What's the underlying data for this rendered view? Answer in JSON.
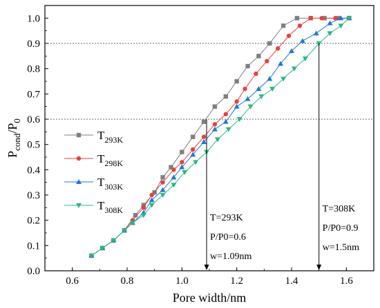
{
  "chart_data": {
    "type": "line",
    "xlabel": "Pore width/nm",
    "ylabel": {
      "main": "P",
      "sub": "cond",
      "rest": "/P",
      "sub2": "0"
    },
    "xlim": [
      0.5,
      1.7
    ],
    "ylim": [
      0.0,
      1.05
    ],
    "xticks": [
      "0.6",
      "0.8",
      "1.0",
      "1.2",
      "1.4",
      "1.6"
    ],
    "yticks": [
      "0.0",
      "0.1",
      "0.2",
      "0.3",
      "0.4",
      "0.5",
      "0.6",
      "0.7",
      "0.8",
      "0.9",
      "1.0"
    ],
    "hlines": [
      0.6,
      0.9
    ],
    "legend_position": "middle-left",
    "series": [
      {
        "name": "T",
        "name_sub": "293K",
        "color": "#7f7f7f",
        "marker": "square",
        "x": [
          0.67,
          0.71,
          0.75,
          0.79,
          0.83,
          0.86,
          0.9,
          0.93,
          0.96,
          1.0,
          1.04,
          1.08,
          1.12,
          1.16,
          1.2,
          1.24,
          1.28,
          1.32,
          1.37,
          1.42,
          1.47,
          1.52,
          1.57,
          1.61
        ],
        "y": [
          0.06,
          0.09,
          0.12,
          0.16,
          0.22,
          0.26,
          0.31,
          0.37,
          0.41,
          0.47,
          0.53,
          0.59,
          0.65,
          0.69,
          0.75,
          0.81,
          0.85,
          0.9,
          0.97,
          1.0,
          1.0,
          1.0,
          1.0,
          1.0
        ]
      },
      {
        "name": "T",
        "name_sub": "298K",
        "color": "#e8403b",
        "marker": "circle",
        "x": [
          0.67,
          0.71,
          0.75,
          0.79,
          0.82,
          0.86,
          0.89,
          0.93,
          0.97,
          1.0,
          1.04,
          1.08,
          1.12,
          1.16,
          1.2,
          1.23,
          1.27,
          1.31,
          1.35,
          1.39,
          1.43,
          1.47,
          1.51,
          1.56,
          1.61
        ],
        "y": [
          0.06,
          0.09,
          0.12,
          0.16,
          0.2,
          0.25,
          0.3,
          0.35,
          0.4,
          0.43,
          0.48,
          0.53,
          0.58,
          0.62,
          0.67,
          0.72,
          0.78,
          0.83,
          0.88,
          0.93,
          0.97,
          1.0,
          1.0,
          1.0,
          1.0
        ]
      },
      {
        "name": "T",
        "name_sub": "303K",
        "color": "#1f77d4",
        "marker": "triangle-up",
        "x": [
          0.67,
          0.71,
          0.75,
          0.79,
          0.82,
          0.86,
          0.89,
          0.93,
          0.97,
          1.0,
          1.04,
          1.08,
          1.12,
          1.16,
          1.2,
          1.24,
          1.28,
          1.32,
          1.36,
          1.4,
          1.44,
          1.49,
          1.54,
          1.58,
          1.61
        ],
        "y": [
          0.06,
          0.09,
          0.12,
          0.16,
          0.19,
          0.23,
          0.28,
          0.32,
          0.37,
          0.41,
          0.46,
          0.51,
          0.56,
          0.59,
          0.65,
          0.68,
          0.72,
          0.76,
          0.82,
          0.87,
          0.91,
          0.94,
          0.98,
          1.0,
          1.0
        ]
      },
      {
        "name": "T",
        "name_sub": "308K",
        "color": "#2db77f",
        "marker": "triangle-down",
        "x": [
          0.67,
          0.71,
          0.75,
          0.79,
          0.82,
          0.86,
          0.89,
          0.93,
          0.97,
          1.01,
          1.05,
          1.09,
          1.13,
          1.17,
          1.21,
          1.25,
          1.29,
          1.33,
          1.37,
          1.41,
          1.45,
          1.5,
          1.54,
          1.58,
          1.61
        ],
        "y": [
          0.06,
          0.09,
          0.12,
          0.16,
          0.19,
          0.22,
          0.26,
          0.3,
          0.34,
          0.39,
          0.43,
          0.47,
          0.52,
          0.56,
          0.6,
          0.65,
          0.69,
          0.72,
          0.76,
          0.8,
          0.84,
          0.9,
          0.94,
          0.97,
          1.0
        ]
      }
    ],
    "annotations": [
      {
        "x": 1.09,
        "y_from": 0.6,
        "lines": [
          "T=293K",
          "P/P0=0.6",
          "w=1.09nm"
        ]
      },
      {
        "x": 1.5,
        "y_from": 0.9,
        "lines": [
          "T=308K",
          "P/P0=0.9",
          "w=1.5nm"
        ]
      }
    ]
  }
}
